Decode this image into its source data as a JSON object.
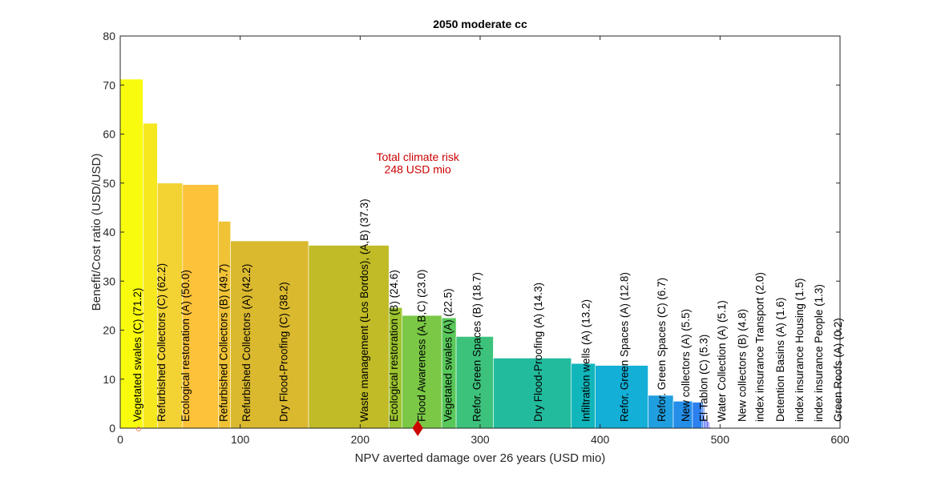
{
  "chart_data": {
    "type": "bar",
    "title": "2050 moderate cc",
    "xlabel": "NPV averted damage over 26 years (USD mio)",
    "ylabel": "Benefit/Cost ratio (USD/USD)",
    "xlim": [
      0,
      600
    ],
    "ylim": [
      0,
      80
    ],
    "xticks": [
      "0",
      "100",
      "200",
      "300",
      "400",
      "500",
      "600"
    ],
    "yticks": [
      "0",
      "10",
      "20",
      "30",
      "40",
      "50",
      "60",
      "70",
      "80"
    ],
    "grid": false,
    "bars": [
      {
        "label": "Vegetated swales (C)  (71.2)",
        "x0": 0,
        "x1": 19,
        "value": 71.2,
        "color": "#f9fb0e"
      },
      {
        "label": "Refurbished Collectors (C)  (62.2)",
        "x0": 19,
        "x1": 31,
        "value": 62.2,
        "color": "#f6e81f"
      },
      {
        "label": "Ecological restoration (A)  (50.0)",
        "x0": 31,
        "x1": 52,
        "value": 50.0,
        "color": "#f2d333"
      },
      {
        "label": "Refurbished Collectors (B)  (49.7)",
        "x0": 52,
        "x1": 82,
        "value": 49.7,
        "color": "#fbc23a"
      },
      {
        "label": "Refurbished Collectors (A)  (42.2)",
        "x0": 82,
        "x1": 92,
        "value": 42.2,
        "color": "#f0c336"
      },
      {
        "label": "Dry Flood-Proofing (C)  (38.2)",
        "x0": 92,
        "x1": 157,
        "value": 38.2,
        "color": "#dbb92f"
      },
      {
        "label": "Waste management (Los Bordos), (A,B)  (37.3)",
        "x0": 157,
        "x1": 224,
        "value": 37.3,
        "color": "#c0bb26"
      },
      {
        "label": "Ecological restoration (B)  (24.6)",
        "x0": 224,
        "x1": 235,
        "value": 24.6,
        "color": "#9cc430"
      },
      {
        "label": "Flood Awareness (A,B,C)  (23.0)",
        "x0": 235,
        "x1": 268,
        "value": 23.0,
        "color": "#7ac845"
      },
      {
        "label": "Vegetated swales (A)  (22.5)",
        "x0": 268,
        "x1": 280,
        "value": 22.5,
        "color": "#59c85a"
      },
      {
        "label": "Refor. Green Spaces (B)  (18.7)",
        "x0": 280,
        "x1": 311,
        "value": 18.7,
        "color": "#3dc27c"
      },
      {
        "label": "Dry Flood-Proofing (A)  (14.3)",
        "x0": 311,
        "x1": 376,
        "value": 14.3,
        "color": "#23bb9d"
      },
      {
        "label": "Infiltration wells (A)  (13.2)",
        "x0": 376,
        "x1": 396,
        "value": 13.2,
        "color": "#11b6bb"
      },
      {
        "label": "Refor. Green Spaces (A)  (12.8)",
        "x0": 396,
        "x1": 440,
        "value": 12.8,
        "color": "#13afd6"
      },
      {
        "label": "Refor. Green Spaces (C)  (6.7)",
        "x0": 440,
        "x1": 461,
        "value": 6.7,
        "color": "#1f9fe0"
      },
      {
        "label": "New collectors (A)  (5.5)",
        "x0": 461,
        "x1": 477,
        "value": 5.5,
        "color": "#258ee9"
      },
      {
        "label": "El Tablon (C)  (5.3)",
        "x0": 477,
        "x1": 485,
        "value": 5.3,
        "color": "#2c80ef"
      },
      {
        "label": "Water Collection (A)  (5.1)",
        "x0": 485,
        "x1": 486,
        "value": 5.1,
        "color": "#3374f3"
      },
      {
        "label": "New collectors (B)  (4.8)",
        "x0": 486,
        "x1": 487,
        "value": 4.8,
        "color": "#3a6af6"
      },
      {
        "label": "index insurance Transport  (2.0)",
        "x0": 487,
        "x1": 488,
        "value": 2.0,
        "color": "#405ff7"
      },
      {
        "label": "Detention Basins (A)  (1.6)",
        "x0": 488,
        "x1": 489,
        "value": 1.6,
        "color": "#4654f8"
      },
      {
        "label": "index insurance Housing  (1.5)",
        "x0": 489,
        "x1": 490,
        "value": 1.5,
        "color": "#4a4af8"
      },
      {
        "label": "index insurance People  (1.3)",
        "x0": 490,
        "x1": 491,
        "value": 1.3,
        "color": "#4d42f5"
      },
      {
        "label": "Green Roofs (A)  (0.2)",
        "x0": 491,
        "x1": 492,
        "value": 0.2,
        "color": "#5038f0"
      }
    ],
    "label_positions_x": [
      14,
      34,
      54,
      86,
      105,
      136,
      203,
      228,
      251,
      273,
      297,
      348,
      388,
      420,
      451,
      471,
      486,
      501,
      518,
      533,
      550,
      566,
      582,
      598
    ],
    "annotation": {
      "text_line1": "Total climate risk",
      "text_line2": "248 USD mio",
      "x": 248,
      "y_line1": 54.5,
      "y_line2": 52.0,
      "color": "#cc0000"
    },
    "marker": {
      "x": 248,
      "y": 0,
      "color": "#cc0000",
      "shape": "diamond"
    },
    "small_marker": {
      "x": 14,
      "y": 0,
      "color": "#f08060",
      "shape": "circle"
    }
  }
}
